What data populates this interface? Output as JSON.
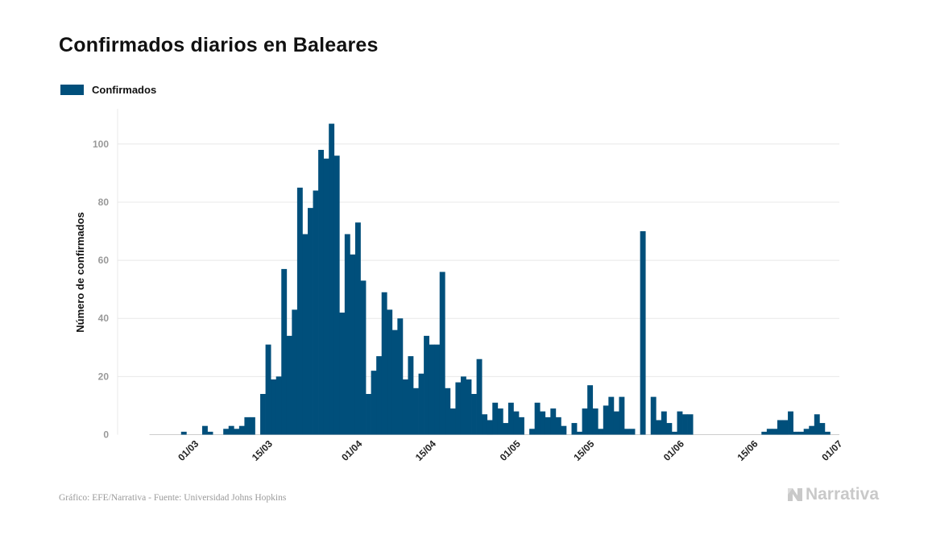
{
  "title": "Confirmados diarios en Baleares",
  "legend": {
    "label": "Confirmados"
  },
  "footer": {
    "source": "Gráfico: EFE/Narrativa - Fuente: Universidad Johns Hopkins",
    "brand": "Narrativa",
    "brand_icon": "narrativa-logo-icon"
  },
  "colors": {
    "bar": "#004f7b",
    "grid": "#e8e8e8",
    "axis": "#cccccc",
    "brand": "#c9c9c9"
  },
  "chart_data": {
    "type": "bar",
    "title": "Confirmados diarios en Baleares",
    "ylabel": "Número de confirmados",
    "xlabel": "",
    "ylim": [
      0,
      112
    ],
    "yticks": [
      0,
      20,
      40,
      60,
      80,
      100
    ],
    "grid": true,
    "legend_position": "top-left",
    "x_start": "2020-02-22",
    "x_end": "2020-07-01",
    "xtick_labels": [
      {
        "label": "01/03",
        "date": "2020-03-01"
      },
      {
        "label": "15/03",
        "date": "2020-03-15"
      },
      {
        "label": "01/04",
        "date": "2020-04-01"
      },
      {
        "label": "15/04",
        "date": "2020-04-15"
      },
      {
        "label": "01/05",
        "date": "2020-05-01"
      },
      {
        "label": "15/05",
        "date": "2020-05-15"
      },
      {
        "label": "01/06",
        "date": "2020-06-01"
      },
      {
        "label": "15/06",
        "date": "2020-06-15"
      },
      {
        "label": "01/07",
        "date": "2020-07-01"
      }
    ],
    "series": [
      {
        "name": "Confirmados",
        "values": [
          0,
          0,
          0,
          0,
          0,
          0,
          1,
          0,
          0,
          0,
          3,
          1,
          0,
          0,
          2,
          3,
          2,
          3,
          6,
          6,
          0,
          14,
          31,
          19,
          20,
          57,
          34,
          43,
          85,
          69,
          78,
          84,
          98,
          95,
          107,
          96,
          42,
          69,
          62,
          73,
          53,
          14,
          22,
          27,
          49,
          43,
          36,
          40,
          19,
          27,
          16,
          21,
          34,
          31,
          31,
          56,
          16,
          9,
          18,
          20,
          19,
          14,
          26,
          7,
          5,
          11,
          9,
          4,
          11,
          8,
          6,
          0,
          2,
          11,
          8,
          6,
          9,
          6,
          3,
          0,
          4,
          1,
          9,
          17,
          9,
          2,
          10,
          13,
          8,
          13,
          2,
          2,
          0,
          70,
          0,
          13,
          5,
          8,
          4,
          1,
          8,
          7,
          7,
          0,
          0,
          0,
          0,
          0,
          0,
          0,
          0,
          0,
          0,
          0,
          0,
          0,
          1,
          2,
          2,
          5,
          5,
          8,
          1,
          1,
          2,
          3,
          7,
          4,
          1,
          0
        ]
      }
    ]
  }
}
